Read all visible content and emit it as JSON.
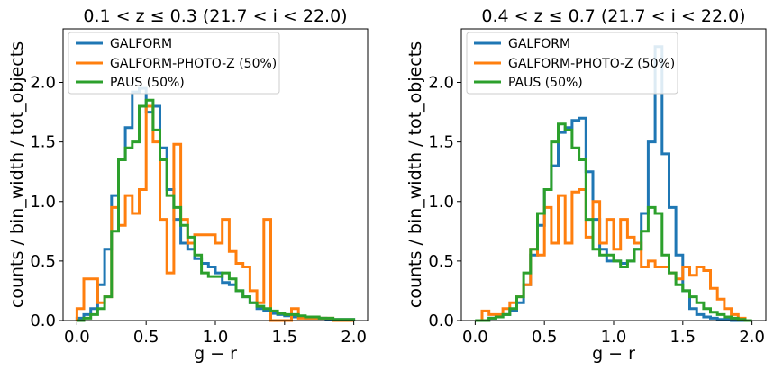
{
  "chart_data": [
    {
      "type": "histogram-step",
      "title": "0.1 < z ≤ 0.3  (21.7 < i < 22.0)",
      "xlabel": "g − r",
      "ylabel": "counts / bin_width / tot_objects",
      "xlim": [
        -0.1,
        2.1
      ],
      "ylim": [
        0,
        2.45
      ],
      "xticks": [
        0.0,
        0.5,
        1.0,
        1.5,
        2.0
      ],
      "xtick_labels": [
        "0.0",
        "0.5",
        "1.0",
        "1.5",
        "2.0"
      ],
      "yticks": [
        0.0,
        0.5,
        1.0,
        1.5,
        2.0
      ],
      "ytick_labels": [
        "0.0",
        "0.5",
        "1.0",
        "1.5",
        "2.0"
      ],
      "legend_position": "top-left",
      "series": [
        {
          "name": "GALFORM",
          "color": "#1f77b4",
          "x_start": 0.0,
          "bin_width": 0.05,
          "values": [
            0.02,
            0.05,
            0.1,
            0.3,
            0.6,
            1.05,
            1.35,
            1.62,
            1.92,
            1.95,
            1.75,
            1.8,
            1.45,
            1.1,
            0.85,
            0.65,
            0.6,
            0.52,
            0.48,
            0.45,
            0.4,
            0.32,
            0.3,
            0.25,
            0.2,
            0.15,
            0.1,
            0.08,
            0.06,
            0.05,
            0.04,
            0.03,
            0.03,
            0.02,
            0.02,
            0.02,
            0.01,
            0.01,
            0.01,
            0.01
          ]
        },
        {
          "name": "GALFORM-PHOTO-Z (50%)",
          "color": "#ff7f0e",
          "x_start": 0.0,
          "bin_width": 0.05,
          "values": [
            0.1,
            0.35,
            0.35,
            0.15,
            0.2,
            0.95,
            0.8,
            1.05,
            0.9,
            1.1,
            1.8,
            1.5,
            0.85,
            0.4,
            1.48,
            0.85,
            0.65,
            0.72,
            0.72,
            0.72,
            0.65,
            0.85,
            0.58,
            0.48,
            0.45,
            0.25,
            0.15,
            0.85,
            0.0,
            0.0,
            0.0,
            0.1,
            0.02,
            0.02,
            0.02,
            0.02,
            0.02,
            0.0,
            0.0,
            0.0
          ]
        },
        {
          "name": "PAUS (50%)",
          "color": "#2ca02c",
          "x_start": 0.0,
          "bin_width": 0.05,
          "values": [
            0.0,
            0.02,
            0.05,
            0.1,
            0.2,
            0.75,
            1.35,
            1.45,
            1.5,
            1.8,
            1.85,
            1.6,
            1.35,
            1.05,
            0.95,
            0.8,
            0.7,
            0.55,
            0.4,
            0.37,
            0.37,
            0.4,
            0.35,
            0.25,
            0.2,
            0.15,
            0.12,
            0.1,
            0.08,
            0.06,
            0.05,
            0.05,
            0.04,
            0.03,
            0.03,
            0.02,
            0.02,
            0.01,
            0.01,
            0.01
          ]
        }
      ]
    },
    {
      "type": "histogram-step",
      "title": "0.4 < z ≤ 0.7  (21.7 < i < 22.0)",
      "xlabel": "g − r",
      "ylabel": "counts / bin_width / tot_objects",
      "xlim": [
        -0.1,
        2.1
      ],
      "ylim": [
        0,
        2.45
      ],
      "xticks": [
        0.0,
        0.5,
        1.0,
        1.5,
        2.0
      ],
      "xtick_labels": [
        "0.0",
        "0.5",
        "1.0",
        "1.5",
        "2.0"
      ],
      "yticks": [
        0.0,
        0.5,
        1.0,
        1.5,
        2.0
      ],
      "ytick_labels": [
        "0.0",
        "0.5",
        "1.0",
        "1.5",
        "2.0"
      ],
      "legend_position": "top-left",
      "series": [
        {
          "name": "GALFORM",
          "color": "#1f77b4",
          "x_start": 0.0,
          "bin_width": 0.05,
          "values": [
            0.0,
            0.0,
            0.02,
            0.03,
            0.05,
            0.08,
            0.15,
            0.3,
            0.55,
            0.8,
            1.1,
            1.3,
            1.58,
            1.62,
            1.68,
            1.7,
            1.25,
            0.85,
            0.6,
            0.5,
            0.5,
            0.48,
            0.5,
            0.6,
            0.9,
            1.5,
            2.3,
            1.4,
            0.95,
            0.55,
            0.25,
            0.1,
            0.05,
            0.03,
            0.02,
            0.01,
            0.01,
            0.0,
            0.0,
            0.0
          ]
        },
        {
          "name": "GALFORM-PHOTO-Z (50%)",
          "color": "#ff7f0e",
          "x_start": 0.0,
          "bin_width": 0.05,
          "values": [
            0.0,
            0.08,
            0.05,
            0.05,
            0.1,
            0.15,
            0.2,
            0.3,
            0.6,
            0.55,
            0.95,
            0.65,
            1.05,
            0.65,
            1.08,
            1.1,
            0.7,
            1.0,
            0.65,
            0.85,
            0.6,
            0.85,
            0.7,
            0.65,
            0.45,
            0.5,
            0.45,
            0.45,
            0.4,
            0.35,
            0.45,
            0.38,
            0.45,
            0.42,
            0.27,
            0.18,
            0.1,
            0.05,
            0.02,
            0.0
          ]
        },
        {
          "name": "PAUS (50%)",
          "color": "#2ca02c",
          "x_start": 0.0,
          "bin_width": 0.05,
          "values": [
            0.0,
            0.0,
            0.02,
            0.03,
            0.05,
            0.1,
            0.2,
            0.4,
            0.6,
            0.9,
            1.1,
            1.5,
            1.65,
            1.6,
            1.45,
            1.35,
            0.85,
            0.6,
            0.55,
            0.55,
            0.5,
            0.45,
            0.5,
            0.6,
            0.75,
            0.95,
            0.9,
            0.55,
            0.4,
            0.3,
            0.25,
            0.2,
            0.15,
            0.1,
            0.07,
            0.05,
            0.03,
            0.02,
            0.01,
            0.0
          ]
        }
      ]
    }
  ]
}
